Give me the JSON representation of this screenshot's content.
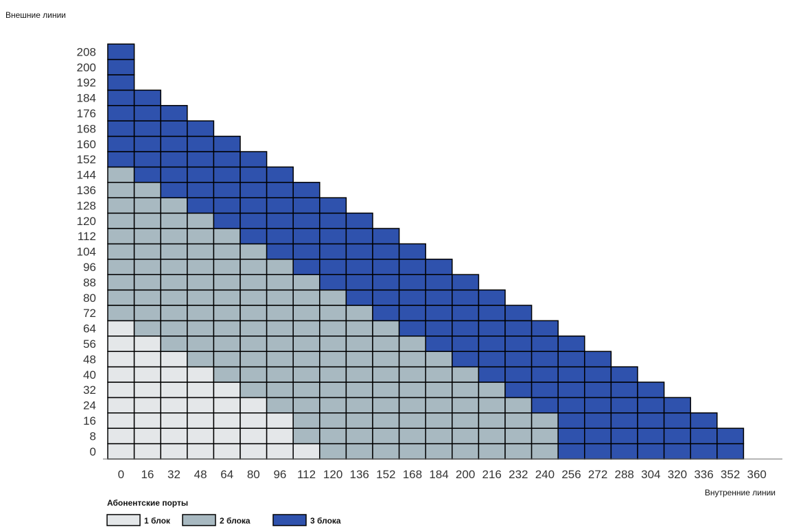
{
  "chart_data": {
    "type": "heatmap",
    "title": "",
    "ylabel": "Внешние линии",
    "xlabel": "Внутренние линии",
    "x": [
      0,
      16,
      32,
      48,
      64,
      80,
      96,
      112,
      120,
      136,
      152,
      168,
      184,
      200,
      216,
      232,
      240,
      256,
      272,
      288,
      304,
      320,
      336,
      352,
      360
    ],
    "y": [
      0,
      8,
      16,
      24,
      32,
      40,
      48,
      56,
      64,
      72,
      80,
      88,
      96,
      104,
      112,
      120,
      128,
      136,
      144,
      152,
      160,
      168,
      176,
      184,
      192,
      200,
      208
    ],
    "legend": {
      "title": "Абонентские порты",
      "position": "bottom-left",
      "items": [
        {
          "level": 1,
          "label": "1 блок",
          "color": "#e4e7e9"
        },
        {
          "level": 2,
          "label": "2 блока",
          "color": "#a8b9c1"
        },
        {
          "level": 3,
          "label": "3 блока",
          "color": "#2f52ad"
        }
      ]
    },
    "grid": true,
    "rows": [
      {
        "y": 0,
        "levels": "111111112222222223333333"
      },
      {
        "y": 8,
        "levels": "111111122222222223333333"
      },
      {
        "y": 16,
        "levels": "11111112222222222333333"
      },
      {
        "y": 24,
        "levels": "1111112222222222333333"
      },
      {
        "y": 32,
        "levels": "111112222222222333333"
      },
      {
        "y": 40,
        "levels": "11112222222222333333"
      },
      {
        "y": 48,
        "levels": "1112222222222333333"
      },
      {
        "y": 56,
        "levels": "112222222222333333"
      },
      {
        "y": 64,
        "levels": "12222222222333333"
      },
      {
        "y": 72,
        "levels": "2222222222333333"
      },
      {
        "y": 80,
        "levels": "222222222333333"
      },
      {
        "y": 88,
        "levels": "22222222333333"
      },
      {
        "y": 96,
        "levels": "2222222333333"
      },
      {
        "y": 104,
        "levels": "222222333333"
      },
      {
        "y": 112,
        "levels": "22222333333"
      },
      {
        "y": 120,
        "levels": "2222333333"
      },
      {
        "y": 128,
        "levels": "222333333"
      },
      {
        "y": 136,
        "levels": "22333333"
      },
      {
        "y": 144,
        "levels": "2333333"
      },
      {
        "y": 152,
        "levels": "333333"
      },
      {
        "y": 160,
        "levels": "33333"
      },
      {
        "y": 168,
        "levels": "3333"
      },
      {
        "y": 176,
        "levels": "333"
      },
      {
        "y": 184,
        "levels": "33"
      },
      {
        "y": 192,
        "levels": "3"
      },
      {
        "y": 200,
        "levels": "3"
      },
      {
        "y": 208,
        "levels": "3"
      }
    ]
  }
}
